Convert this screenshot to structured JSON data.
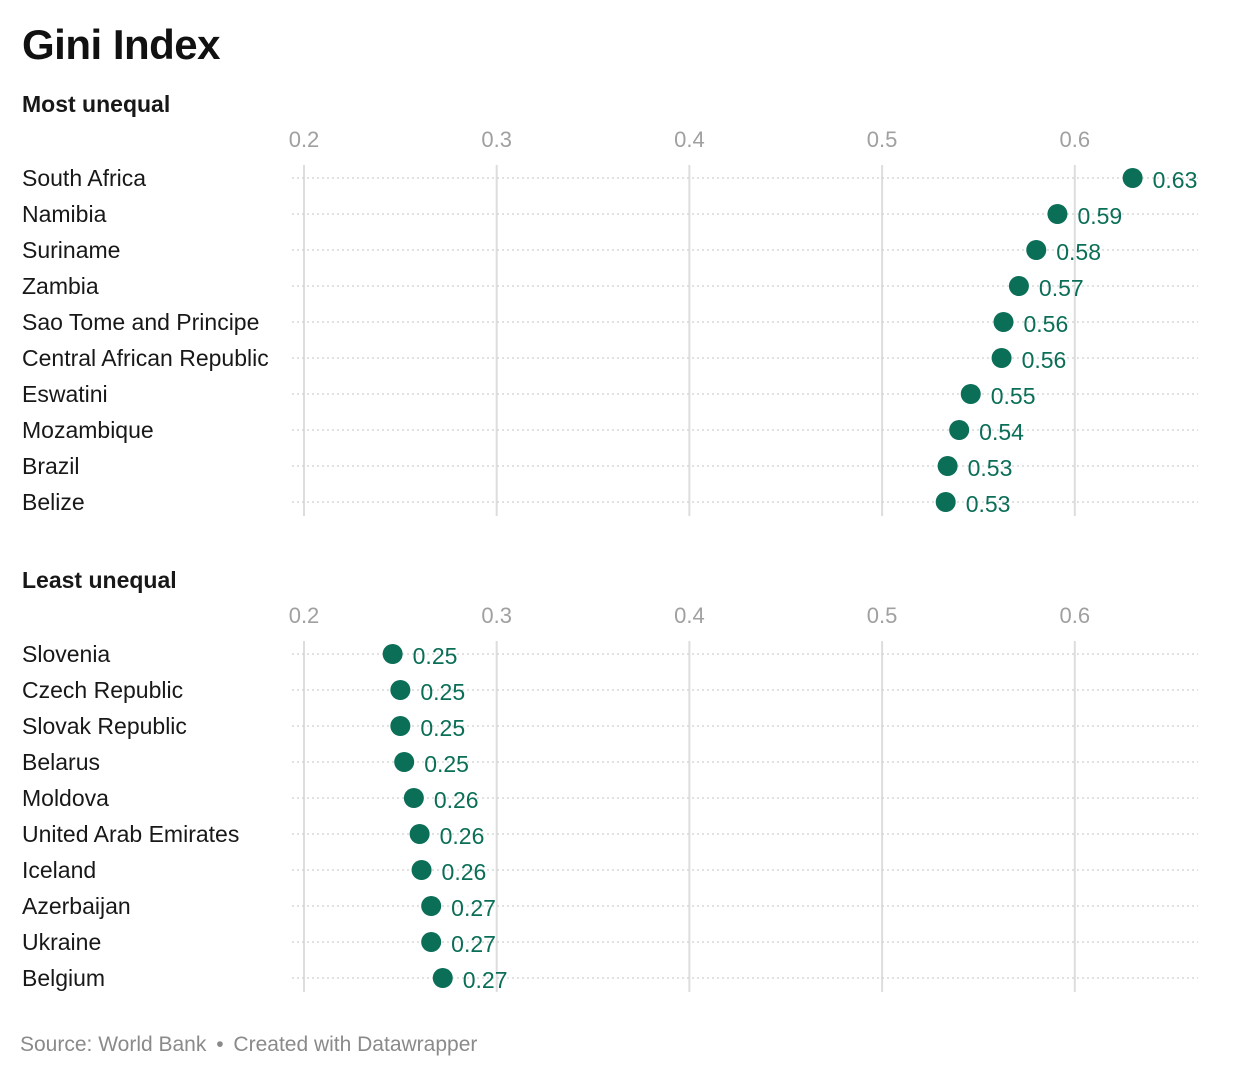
{
  "title": "Gini Index",
  "footer": {
    "source": "Source: World Bank",
    "separator": "•",
    "credit": "Created with Datawrapper"
  },
  "colors": {
    "dot": "#0b6e57",
    "value_label": "#0b6e57",
    "gridline": "#dddddd",
    "dotted_row_line": "#cfcfcf",
    "tick_label": "#a0a0a0",
    "row_label": "#181818",
    "section_title": "#181818"
  },
  "chart_data": [
    {
      "type": "scatter",
      "title": "Most unequal",
      "xlim": [
        0.2,
        0.65
      ],
      "xticks": [
        0.2,
        0.3,
        0.4,
        0.5,
        0.6
      ],
      "xtick_labels": [
        "0.2",
        "0.3",
        "0.4",
        "0.5",
        "0.6"
      ],
      "grid": true,
      "categories": [
        "South Africa",
        "Namibia",
        "Suriname",
        "Zambia",
        "Sao Tome and Principe",
        "Central African Republic",
        "Eswatini",
        "Mozambique",
        "Brazil",
        "Belize"
      ],
      "values": [
        0.63,
        0.591,
        0.58,
        0.571,
        0.563,
        0.562,
        0.546,
        0.54,
        0.534,
        0.533
      ],
      "value_labels": [
        "0.63",
        "0.59",
        "0.58",
        "0.57",
        "0.56",
        "0.56",
        "0.55",
        "0.54",
        "0.53",
        "0.53"
      ]
    },
    {
      "type": "scatter",
      "title": "Least unequal",
      "xlim": [
        0.2,
        0.65
      ],
      "xticks": [
        0.2,
        0.3,
        0.4,
        0.5,
        0.6
      ],
      "xtick_labels": [
        "0.2",
        "0.3",
        "0.4",
        "0.5",
        "0.6"
      ],
      "grid": true,
      "categories": [
        "Slovenia",
        "Czech Republic",
        "Slovak Republic",
        "Belarus",
        "Moldova",
        "United Arab Emirates",
        "Iceland",
        "Azerbaijan",
        "Ukraine",
        "Belgium"
      ],
      "values": [
        0.246,
        0.25,
        0.25,
        0.252,
        0.257,
        0.26,
        0.261,
        0.266,
        0.266,
        0.272
      ],
      "value_labels": [
        "0.25",
        "0.25",
        "0.25",
        "0.25",
        "0.26",
        "0.26",
        "0.26",
        "0.27",
        "0.27",
        "0.27"
      ]
    }
  ]
}
